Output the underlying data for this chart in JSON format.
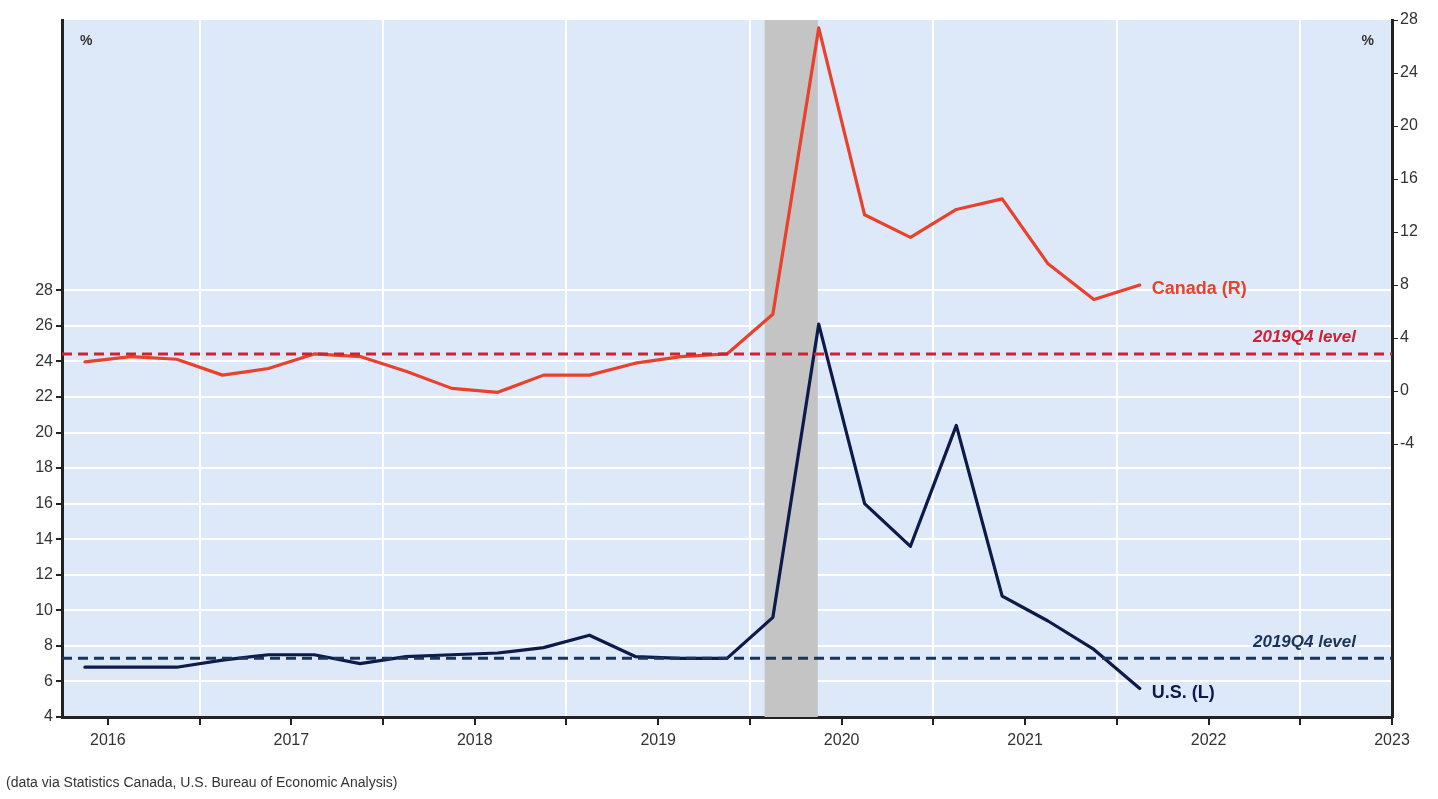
{
  "chart_data": {
    "type": "line",
    "x": [
      2016.375,
      2016.625,
      2016.875,
      2017.125,
      2017.375,
      2017.625,
      2017.875,
      2018.125,
      2018.375,
      2018.625,
      2018.875,
      2019.125,
      2019.375,
      2019.625,
      2019.875,
      2020.125,
      2020.375,
      2020.625,
      2020.875,
      2021.125,
      2021.375,
      2021.625,
      2021.875,
      2022.125
    ],
    "series": [
      {
        "name": "Canada (R)",
        "color": "#e8412c",
        "axis": "y2",
        "values": [
          2.2,
          2.6,
          2.4,
          1.2,
          1.7,
          2.8,
          2.6,
          1.5,
          0.2,
          -0.1,
          1.2,
          1.2,
          2.1,
          2.6,
          2.8,
          5.8,
          27.4,
          13.3,
          11.6,
          13.7,
          14.5,
          9.6,
          6.9,
          8.0
        ]
      },
      {
        "name": "U.S. (L)",
        "color": "#0d1a4a",
        "values": [
          6.8,
          6.8,
          6.8,
          7.2,
          7.5,
          7.5,
          7.0,
          7.4,
          7.5,
          7.6,
          7.9,
          8.6,
          7.4,
          7.3,
          7.3,
          9.6,
          26.1,
          16.0,
          13.6,
          20.4,
          10.8,
          9.4,
          7.8,
          5.6
        ]
      }
    ],
    "xlim": [
      2016.25,
      2023.5
    ],
    "xticks": [
      {
        "value": 2016.5,
        "label": "2016"
      },
      {
        "value": 2017,
        "label": null
      },
      {
        "value": 2017.5,
        "label": "2017"
      },
      {
        "value": 2018,
        "label": null
      },
      {
        "value": 2018.5,
        "label": "2018"
      },
      {
        "value": 2019,
        "label": null
      },
      {
        "value": 2019.5,
        "label": "2019"
      },
      {
        "value": 2020,
        "label": null
      },
      {
        "value": 2020.5,
        "label": "2020"
      },
      {
        "value": 2021,
        "label": null
      },
      {
        "value": 2021.5,
        "label": "2021"
      },
      {
        "value": 2022,
        "label": null
      },
      {
        "value": 2022.5,
        "label": "2022"
      },
      {
        "value": 2023,
        "label": null
      },
      {
        "value": 2023.5,
        "label": "2023"
      }
    ],
    "ylim": [
      4,
      43.2
    ],
    "yticks": [
      4,
      6,
      8,
      10,
      12,
      14,
      16,
      18,
      20,
      22,
      24,
      26,
      28
    ],
    "y2lim": [
      -24.6,
      28
    ],
    "y2ticks": [
      -4,
      0,
      4,
      8,
      12,
      16,
      20,
      24,
      28
    ],
    "ylabel": "%",
    "y2label": "%",
    "grid": true,
    "legend": false,
    "line_style": "solid",
    "ref_lines": [
      {
        "axis": "y2",
        "value": 2.8,
        "label": "2019Q4 level",
        "color": "#cc2236",
        "line_style": "dashed"
      },
      {
        "axis": "y",
        "value": 7.3,
        "label": "2019Q4 level",
        "color": "#1b3558",
        "line_style": "dashed"
      }
    ],
    "bands": [
      {
        "axis": "x",
        "from": 2020.08,
        "to": 2020.37,
        "color": "#c4c4c4"
      }
    ],
    "annotations": [
      "(data via Statistics Canada, U.S. Bureau of Economic Analysis)"
    ]
  }
}
